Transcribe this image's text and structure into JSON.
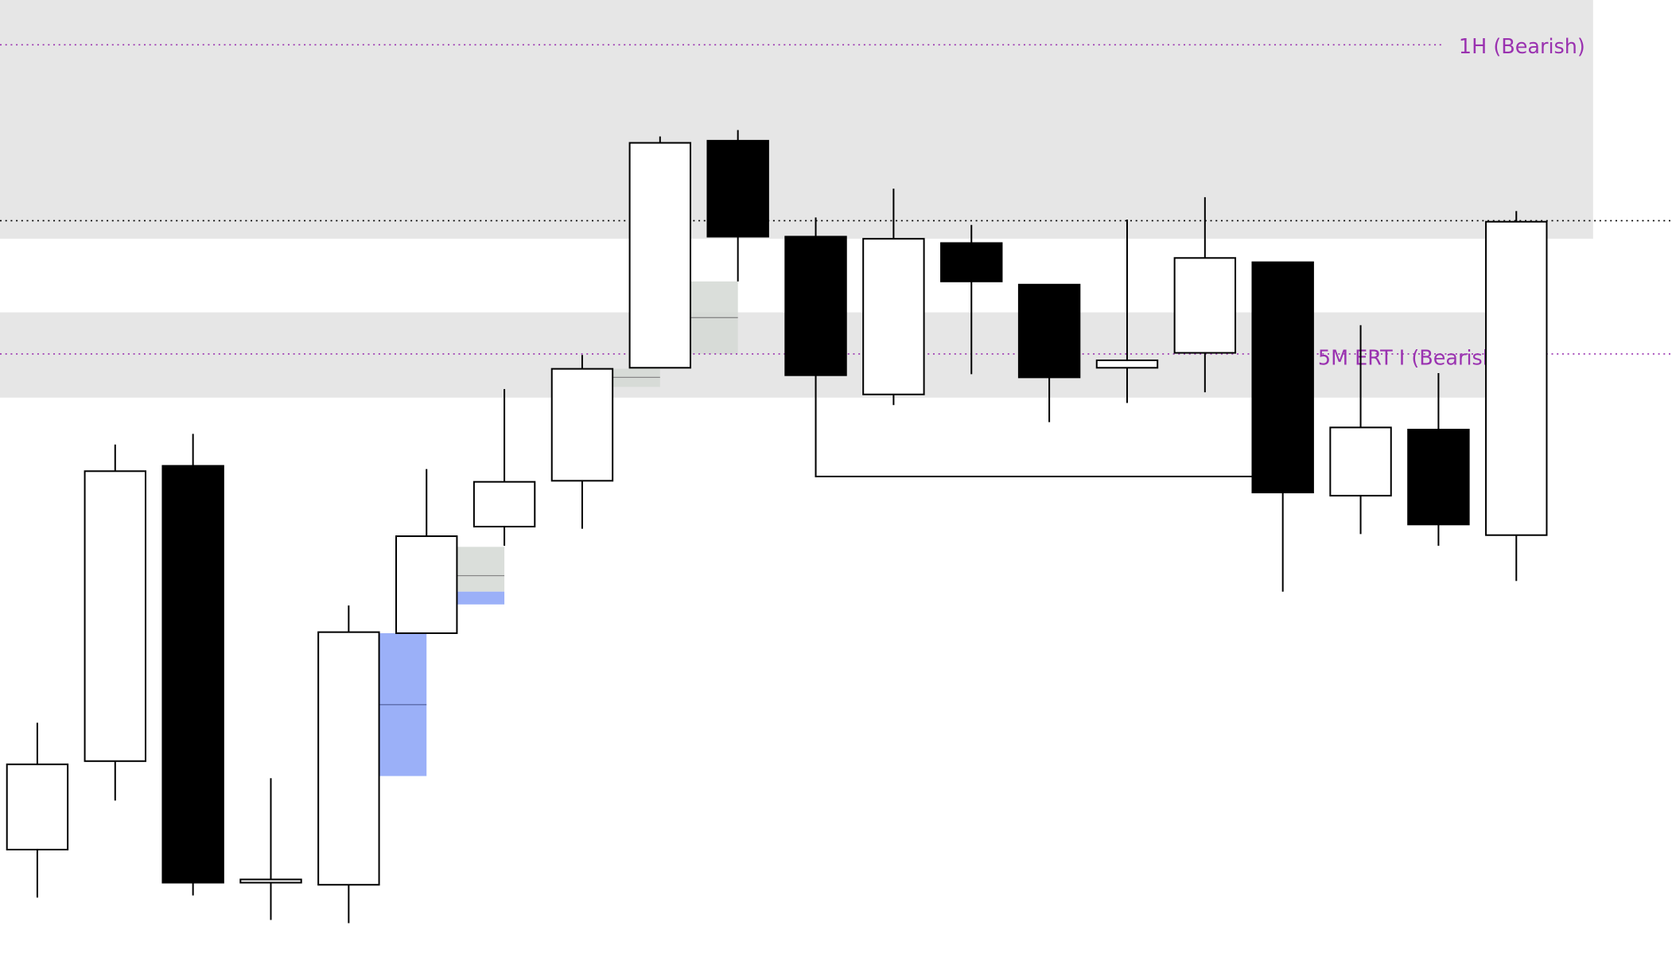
{
  "chart_data": {
    "type": "candlestick",
    "title": "",
    "xlabel": "",
    "ylabel": "",
    "ylim": [
      0,
      894
    ],
    "grid": false,
    "colors": {
      "bull_fill": "#ffffff",
      "bear_fill": "#000000",
      "outline": "#000000",
      "zone": "#e6e6e6",
      "level_label": "#9a32b0",
      "fvg_blue": "#9bb0f8",
      "fvg_gray": "#d3d8d4",
      "fvg_mid": "#888888"
    },
    "candles": [
      {
        "o": 97,
        "h": 216,
        "l": 52,
        "c": 177
      },
      {
        "o": 180,
        "h": 477,
        "l": 143,
        "c": 452
      },
      {
        "o": 457,
        "h": 487,
        "l": 54,
        "c": 66
      },
      {
        "o": 66,
        "h": 164,
        "l": 31,
        "c": 69
      },
      {
        "o": 64,
        "h": 326,
        "l": 28,
        "c": 301
      },
      {
        "o": 300,
        "h": 454,
        "l": 300,
        "c": 391
      },
      {
        "o": 400,
        "h": 529,
        "l": 382,
        "c": 442
      },
      {
        "o": 443,
        "h": 561,
        "l": 398,
        "c": 548
      },
      {
        "o": 549,
        "h": 766,
        "l": 549,
        "c": 760
      },
      {
        "o": 762,
        "h": 772,
        "l": 630,
        "c": 672
      },
      {
        "o": 672,
        "h": 690,
        "l": 447,
        "c": 542
      },
      {
        "o": 524,
        "h": 717,
        "l": 514,
        "c": 670
      },
      {
        "o": 666,
        "h": 683,
        "l": 543,
        "c": 630
      },
      {
        "o": 627,
        "h": 627,
        "l": 498,
        "c": 540
      },
      {
        "o": 549,
        "h": 688,
        "l": 516,
        "c": 556
      },
      {
        "o": 563,
        "h": 709,
        "l": 526,
        "c": 652
      },
      {
        "o": 648,
        "h": 648,
        "l": 339,
        "c": 432
      },
      {
        "o": 429,
        "h": 589,
        "l": 393,
        "c": 493
      },
      {
        "o": 491,
        "h": 544,
        "l": 382,
        "c": 402
      },
      {
        "o": 392,
        "h": 696,
        "l": 349,
        "c": 686
      }
    ],
    "zones": [
      {
        "top": 894,
        "bottom": 670
      },
      {
        "top": 601,
        "bottom": 521
      }
    ],
    "levels": [
      {
        "price": 852,
        "label": "1H (Bearish)",
        "style": "dotted",
        "color": "#9a32b0"
      },
      {
        "price": 687,
        "label": "",
        "style": "dotted",
        "color": "#000000"
      },
      {
        "price": 562,
        "label": "5M ERT I (Bearish)",
        "label_visible": "5M ERT I (Bearis",
        "style": "dotted",
        "color": "#9a32b0"
      }
    ],
    "fvgs": [
      {
        "after_candle": 5,
        "parts": [
          {
            "top": 300,
            "bottom": 166,
            "color": "blue"
          }
        ],
        "mid": 233
      },
      {
        "after_candle": 6,
        "parts": [
          {
            "top": 381,
            "bottom": 339,
            "color": "gray"
          },
          {
            "top": 339,
            "bottom": 327,
            "color": "blue"
          }
        ],
        "mid": 354
      },
      {
        "after_candle": 8,
        "parts": [
          {
            "top": 548,
            "bottom": 531,
            "color": "gray"
          }
        ],
        "mid": 540
      },
      {
        "after_candle": 9,
        "parts": [
          {
            "top": 630,
            "bottom": 562,
            "color": "gray"
          }
        ],
        "mid": 596
      }
    ],
    "swing_line": {
      "price": 447,
      "from_candle": 11,
      "to_candle": 17
    }
  }
}
